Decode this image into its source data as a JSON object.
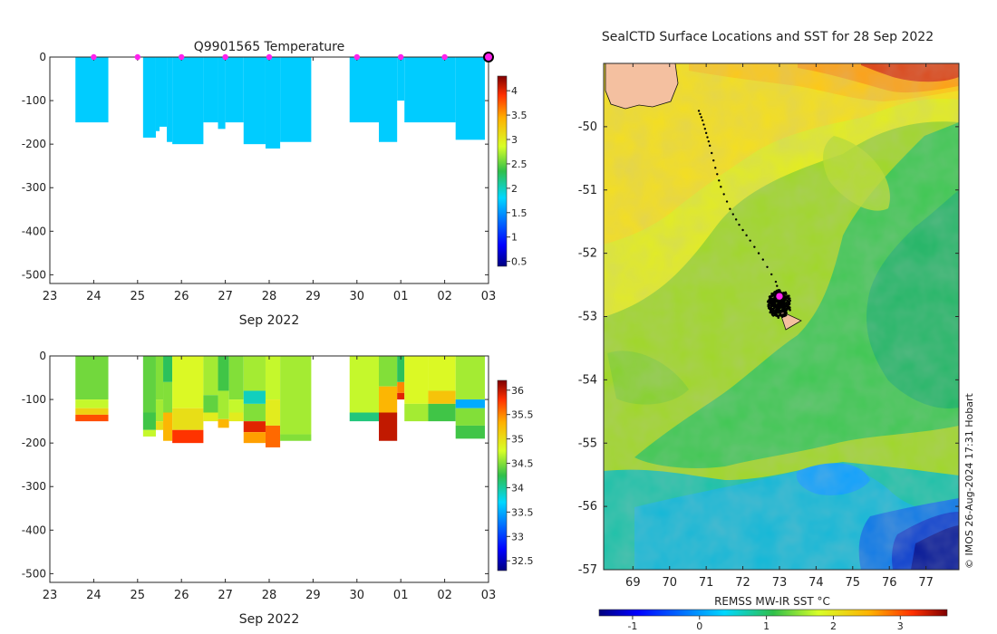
{
  "chart_data": [
    {
      "type": "heatmap",
      "title": "Q9901565  Temperature",
      "xlabel": "Sep 2022",
      "ylabel": "",
      "xlim": [
        "2022-09-23",
        "2022-10-03"
      ],
      "ylim": [
        -520,
        0
      ],
      "x_ticks": [
        "23",
        "24",
        "25",
        "26",
        "27",
        "28",
        "29",
        "30",
        "01",
        "02",
        "03"
      ],
      "y_ticks": [
        0,
        -100,
        -200,
        -300,
        -400,
        -500
      ],
      "grid": false,
      "colorbar": {
        "min": 0.4,
        "max": 4.3,
        "ticks": [
          0.5,
          1,
          1.5,
          2,
          2.5,
          3,
          3.5,
          4
        ],
        "colormap": "jet"
      },
      "profiles": [
        {
          "x0": "2022-09-23T14",
          "x1": "2022-09-24T08",
          "depth": -150,
          "value": 1.75
        },
        {
          "x0": "2022-09-25T03",
          "x1": "2022-09-25T10",
          "depth": -185,
          "value": 1.75
        },
        {
          "x0": "2022-09-25T10",
          "x1": "2022-09-25T12",
          "depth": -170,
          "value": 1.75
        },
        {
          "x0": "2022-09-25T12",
          "x1": "2022-09-25T16",
          "depth": -160,
          "value": 1.75
        },
        {
          "x0": "2022-09-25T16",
          "x1": "2022-09-25T19",
          "depth": -195,
          "value": 1.75
        },
        {
          "x0": "2022-09-25T19",
          "x1": "2022-09-26T12",
          "depth": -200,
          "value": 1.75
        },
        {
          "x0": "2022-09-26T12",
          "x1": "2022-09-26T20",
          "depth": -150,
          "value": 1.75
        },
        {
          "x0": "2022-09-26T20",
          "x1": "2022-09-27T00",
          "depth": -165,
          "value": 1.75
        },
        {
          "x0": "2022-09-27T00",
          "x1": "2022-09-27T10",
          "depth": -150,
          "value": 1.75
        },
        {
          "x0": "2022-09-27T10",
          "x1": "2022-09-27T22",
          "depth": -200,
          "value": 1.75
        },
        {
          "x0": "2022-09-27T22",
          "x1": "2022-09-28T06",
          "depth": -210,
          "value": 1.75
        },
        {
          "x0": "2022-09-28T06",
          "x1": "2022-09-28T23",
          "depth": -195,
          "value": 1.75
        },
        {
          "x0": "2022-09-29T20",
          "x1": "2022-09-30T12",
          "depth": -150,
          "value": 1.75
        },
        {
          "x0": "2022-09-30T12",
          "x1": "2022-09-30T22",
          "depth": -195,
          "value": 1.75
        },
        {
          "x0": "2022-09-30T22",
          "x1": "2022-10-01T02",
          "depth": -100,
          "value": 1.75
        },
        {
          "x0": "2022-10-01T02",
          "x1": "2022-10-02T06",
          "depth": -150,
          "value": 1.75
        },
        {
          "x0": "2022-10-02T06",
          "x1": "2022-10-02T22",
          "depth": -190,
          "value": 1.75
        }
      ],
      "surface_markers": [
        "2022-09-24",
        "2022-09-25",
        "2022-09-26",
        "2022-09-27",
        "2022-09-28",
        "2022-09-30",
        "2022-10-01",
        "2022-10-02",
        "2022-10-03"
      ]
    },
    {
      "type": "heatmap",
      "title": "",
      "xlabel": "Sep 2022",
      "ylabel": "",
      "xlim": [
        "2022-09-23",
        "2022-10-03"
      ],
      "ylim": [
        -520,
        0
      ],
      "x_ticks": [
        "23",
        "24",
        "25",
        "26",
        "27",
        "28",
        "29",
        "30",
        "01",
        "02",
        "03"
      ],
      "y_ticks": [
        0,
        -100,
        -200,
        -300,
        -400,
        -500
      ],
      "grid": false,
      "colorbar": {
        "min": 32.3,
        "max": 36.2,
        "ticks": [
          32.5,
          33,
          33.5,
          34,
          34.5,
          35,
          35.5,
          36
        ],
        "colormap": "jet"
      },
      "profiles": [
        {
          "x0": "2022-09-23T14",
          "x1": "2022-09-24T08",
          "depth": -150,
          "layers": [
            [
              0,
              -100,
              34.45
            ],
            [
              -100,
              -120,
              34.7
            ],
            [
              -120,
              -135,
              35.1
            ],
            [
              -135,
              -150,
              35.7
            ]
          ]
        },
        {
          "x0": "2022-09-25T03",
          "x1": "2022-09-25T10",
          "depth": -185,
          "layers": [
            [
              0,
              -130,
              34.4
            ],
            [
              -130,
              -170,
              34.3
            ],
            [
              -170,
              -185,
              34.7
            ]
          ]
        },
        {
          "x0": "2022-09-25T10",
          "x1": "2022-09-25T14",
          "depth": -170,
          "layers": [
            [
              0,
              -100,
              34.5
            ],
            [
              -100,
              -150,
              34.6
            ],
            [
              -150,
              -170,
              35.0
            ]
          ]
        },
        {
          "x0": "2022-09-25T14",
          "x1": "2022-09-25T19",
          "depth": -195,
          "layers": [
            [
              0,
              -60,
              34.2
            ],
            [
              -60,
              -130,
              34.5
            ],
            [
              -130,
              -195,
              35.3
            ]
          ]
        },
        {
          "x0": "2022-09-25T19",
          "x1": "2022-09-26T12",
          "depth": -200,
          "layers": [
            [
              0,
              -120,
              34.8
            ],
            [
              -120,
              -170,
              35.0
            ],
            [
              -170,
              -200,
              35.8
            ]
          ]
        },
        {
          "x0": "2022-09-26T12",
          "x1": "2022-09-26T20",
          "depth": -150,
          "layers": [
            [
              0,
              -90,
              34.6
            ],
            [
              -90,
              -130,
              34.4
            ],
            [
              -130,
              -150,
              34.9
            ]
          ]
        },
        {
          "x0": "2022-09-26T20",
          "x1": "2022-09-27T02",
          "depth": -165,
          "layers": [
            [
              0,
              -80,
              34.3
            ],
            [
              -80,
              -145,
              34.6
            ],
            [
              -145,
              -165,
              35.3
            ]
          ]
        },
        {
          "x0": "2022-09-27T02",
          "x1": "2022-09-27T10",
          "depth": -150,
          "layers": [
            [
              0,
              -100,
              34.5
            ],
            [
              -100,
              -130,
              34.7
            ],
            [
              -130,
              -150,
              34.9
            ]
          ]
        },
        {
          "x0": "2022-09-27T10",
          "x1": "2022-09-27T22",
          "depth": -200,
          "layers": [
            [
              0,
              -80,
              34.6
            ],
            [
              -80,
              -110,
              33.9
            ],
            [
              -110,
              -150,
              34.5
            ],
            [
              -150,
              -175,
              35.9
            ],
            [
              -175,
              -200,
              35.4
            ]
          ]
        },
        {
          "x0": "2022-09-27T22",
          "x1": "2022-09-28T06",
          "depth": -210,
          "layers": [
            [
              0,
              -100,
              34.7
            ],
            [
              -100,
              -160,
              34.9
            ],
            [
              -160,
              -210,
              35.6
            ]
          ]
        },
        {
          "x0": "2022-09-28T06",
          "x1": "2022-09-28T23",
          "depth": -195,
          "layers": [
            [
              0,
              -180,
              34.6
            ],
            [
              -180,
              -195,
              34.5
            ]
          ]
        },
        {
          "x0": "2022-09-29T20",
          "x1": "2022-09-30T12",
          "depth": -150,
          "layers": [
            [
              0,
              -130,
              34.7
            ],
            [
              -130,
              -150,
              34.1
            ]
          ]
        },
        {
          "x0": "2022-09-30T12",
          "x1": "2022-09-30T22",
          "depth": -195,
          "layers": [
            [
              0,
              -70,
              34.5
            ],
            [
              -70,
              -130,
              35.3
            ],
            [
              -130,
              -195,
              36.0
            ]
          ]
        },
        {
          "x0": "2022-09-30T22",
          "x1": "2022-10-01T02",
          "depth": -100,
          "layers": [
            [
              0,
              -60,
              34.2
            ],
            [
              -60,
              -85,
              35.5
            ],
            [
              -85,
              -100,
              35.9
            ]
          ]
        },
        {
          "x0": "2022-10-01T02",
          "x1": "2022-10-01T15",
          "depth": -150,
          "layers": [
            [
              0,
              -110,
              34.8
            ],
            [
              -110,
              -150,
              34.6
            ]
          ]
        },
        {
          "x0": "2022-10-01T15",
          "x1": "2022-10-02T06",
          "depth": -150,
          "layers": [
            [
              0,
              -80,
              34.8
            ],
            [
              -80,
              -110,
              35.2
            ],
            [
              -110,
              -150,
              34.3
            ]
          ]
        },
        {
          "x0": "2022-10-02T06",
          "x1": "2022-10-02T22",
          "depth": -190,
          "layers": [
            [
              0,
              -100,
              34.6
            ],
            [
              -100,
              -120,
              33.5
            ],
            [
              -120,
              -160,
              34.5
            ],
            [
              -160,
              -190,
              34.3
            ]
          ]
        }
      ]
    },
    {
      "type": "heatmap",
      "title": "SealCTD Surface Locations and SST for 28 Sep 2022",
      "xlabel": "",
      "ylabel": "",
      "xlim": [
        68.2,
        77.9
      ],
      "ylim": [
        -57.0,
        -49.0
      ],
      "x_ticks": [
        69,
        70,
        71,
        72,
        73,
        74,
        75,
        76,
        77
      ],
      "y_ticks": [
        -50,
        -51,
        -52,
        -53,
        -54,
        -55,
        -56,
        -57
      ],
      "colorbar": {
        "label": "REMSS MW-IR SST °C",
        "min": -1.5,
        "max": 3.7,
        "ticks": [
          -1,
          0,
          1,
          2,
          3
        ],
        "colormap": "jet"
      },
      "sst_description": "cooler 1-1.5°C band south-west to north-east; warm 2.5-3.7°C in north; cold -1 to 0°C in south-east",
      "track": [
        [
          70.8,
          -49.75
        ],
        [
          70.9,
          -49.9
        ],
        [
          71.0,
          -50.1
        ],
        [
          71.1,
          -50.3
        ],
        [
          71.25,
          -50.65
        ],
        [
          71.4,
          -50.95
        ],
        [
          71.65,
          -51.3
        ],
        [
          71.9,
          -51.55
        ],
        [
          72.2,
          -51.8
        ],
        [
          72.55,
          -52.1
        ],
        [
          72.9,
          -52.45
        ],
        [
          73.0,
          -52.65
        ]
      ],
      "cluster_center": [
        73.0,
        -52.8
      ],
      "latest_position": [
        73.0,
        -52.68
      ],
      "credit": "© IMOS 26-Aug-2024 17:31 Hobart"
    }
  ]
}
